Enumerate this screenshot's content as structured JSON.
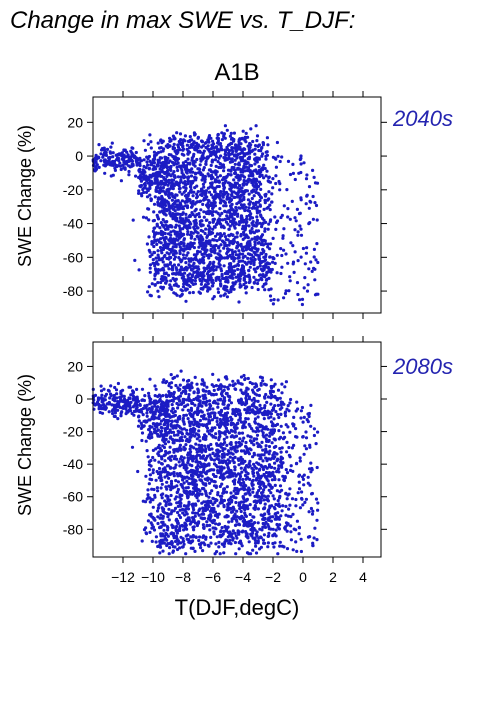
{
  "figure": {
    "heading": "Change in max SWE vs. T_DJF:",
    "scenario": "A1B",
    "xlabel": "T(DJF,degC)"
  },
  "colors": {
    "points": "#1c1cc4",
    "period_label": "#2424b0",
    "frame": "#000000"
  },
  "chart_data": [
    {
      "type": "scatter",
      "period": "2040s",
      "ylabel": "SWE Change (%)",
      "xlabel": "",
      "xlim": [
        -14,
        5.2
      ],
      "ylim": [
        -93,
        35
      ],
      "xticks": [
        -12,
        -10,
        -8,
        -6,
        -4,
        -2,
        0,
        2,
        4
      ],
      "yticks": [
        20,
        0,
        -20,
        -40,
        -60,
        -80
      ],
      "grid": false,
      "points_description": "dense cloud of several thousand points; bulk spans T about -10 to -2 degC and SWE change about +15% to -85%",
      "cloud": {
        "x_range": [
          -14,
          1
        ],
        "y_range": [
          -88,
          18
        ],
        "core_x_range": [
          -10,
          -2.5
        ],
        "core_y_range": [
          -80,
          12
        ]
      }
    },
    {
      "type": "scatter",
      "period": "2080s",
      "ylabel": "SWE Change (%)",
      "xlabel": "T(DJF,degC)",
      "xlim": [
        -14,
        5.2
      ],
      "ylim": [
        -97,
        35
      ],
      "xticks": [
        -12,
        -10,
        -8,
        -6,
        -4,
        -2,
        0,
        2,
        4
      ],
      "xtick_labels": [
        "−12",
        "−10",
        "−8",
        "−6",
        "−4",
        "−2",
        "0",
        "2",
        "4"
      ],
      "yticks": [
        20,
        0,
        -20,
        -40,
        -60,
        -80
      ],
      "grid": false,
      "points_description": "dense cloud of several thousand points; bulk spans T about -10 to -1 degC and SWE change about +15% to -93%",
      "cloud": {
        "x_range": [
          -14,
          1
        ],
        "y_range": [
          -95,
          18
        ],
        "core_x_range": [
          -10,
          -1.5
        ],
        "core_y_range": [
          -92,
          10
        ]
      }
    }
  ]
}
